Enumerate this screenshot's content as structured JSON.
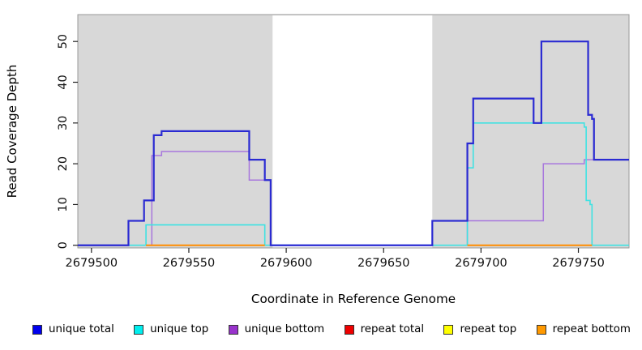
{
  "chart_data": {
    "type": "line",
    "subtype": "step-coverage-plot",
    "xlabel": "Coordinate in Reference Genome",
    "ylabel": "Read Coverage Depth",
    "xlim": [
      2679493,
      2679776
    ],
    "ylim": [
      -0.65,
      56.6
    ],
    "x_ticks": [
      2679500,
      2679550,
      2679600,
      2679650,
      2679700,
      2679750
    ],
    "y_ticks": [
      0,
      10,
      20,
      30,
      40,
      50
    ],
    "plot_bg": "#d8d8d8",
    "border_color": "#999999",
    "gap_region": {
      "start": 2679593,
      "end": 2679675,
      "color": "#ffffff"
    },
    "grid": false,
    "legend_position": "bottom",
    "draw_order": [
      "repeat total",
      "repeat top",
      "unique bottom",
      "unique top",
      "unique total",
      "repeat bottom"
    ],
    "series": [
      {
        "name": "unique total",
        "color": "#2a2ad2",
        "line_width": 2.2,
        "steps": [
          [
            2679493,
            0
          ],
          [
            2679519,
            6
          ],
          [
            2679527,
            11
          ],
          [
            2679532,
            27
          ],
          [
            2679536,
            28
          ],
          [
            2679581,
            21
          ],
          [
            2679589,
            16
          ],
          [
            2679592,
            0
          ],
          [
            2679675,
            6
          ],
          [
            2679693,
            25
          ],
          [
            2679696,
            36
          ],
          [
            2679727,
            30
          ],
          [
            2679731,
            50
          ],
          [
            2679755,
            32
          ],
          [
            2679757,
            31
          ],
          [
            2679758,
            21
          ]
        ]
      },
      {
        "name": "unique top",
        "color": "#3fe2e2",
        "line_width": 1.6,
        "steps": [
          [
            2679493,
            0
          ],
          [
            2679528,
            5
          ],
          [
            2679589,
            0
          ],
          [
            2679693,
            19
          ],
          [
            2679696,
            30
          ],
          [
            2679753,
            29
          ],
          [
            2679754,
            11
          ],
          [
            2679756,
            10
          ],
          [
            2679757,
            0
          ]
        ]
      },
      {
        "name": "unique bottom",
        "color": "#a877dd",
        "line_width": 1.5,
        "steps": [
          [
            2679493,
            0
          ],
          [
            2679531,
            22
          ],
          [
            2679536,
            23
          ],
          [
            2679581,
            16
          ],
          [
            2679592,
            0
          ],
          [
            2679693,
            6
          ],
          [
            2679732,
            20
          ],
          [
            2679753,
            21
          ]
        ]
      },
      {
        "name": "repeat total",
        "color": "#dd2222",
        "line_width": 1.5,
        "steps": [
          [
            2679493,
            0
          ]
        ]
      },
      {
        "name": "repeat top",
        "color": "#e0e04a",
        "line_width": 1.5,
        "steps": [
          [
            2679493,
            0
          ]
        ]
      },
      {
        "name": "repeat bottom",
        "color": "#ff8c00",
        "line_width": 2,
        "segments": [
          {
            "from": 2679528,
            "to": 2679589,
            "value": 0
          },
          {
            "from": 2679693,
            "to": 2679757,
            "value": 0
          }
        ]
      }
    ],
    "legend": [
      {
        "label": "unique total",
        "color": "#0000ee"
      },
      {
        "label": "unique top",
        "color": "#00eeee"
      },
      {
        "label": "unique bottom",
        "color": "#9933cc"
      },
      {
        "label": "repeat total",
        "color": "#ee0000"
      },
      {
        "label": "repeat top",
        "color": "#ffff00"
      },
      {
        "label": "repeat bottom",
        "color": "#ff9900"
      }
    ]
  }
}
